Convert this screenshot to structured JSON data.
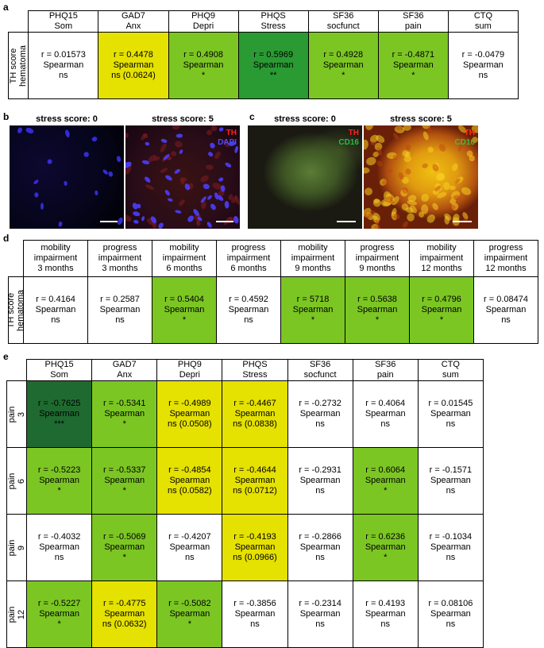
{
  "panels": {
    "a": {
      "label": "a",
      "row_label": "TH score\nhematoma",
      "headers": [
        "PHQ15\nSom",
        "GAD7\nAnx",
        "PHQ9\nDepri",
        "PHQS\nStress",
        "SF36\nsocfunct",
        "SF36\npain",
        "CTQ\nsum"
      ],
      "cells": [
        {
          "text": "r = 0.01573\nSpearman\nns",
          "color": "#ffffff"
        },
        {
          "text": "r = 0.4478\nSpearman\nns (0.0624)",
          "color": "#e5e100"
        },
        {
          "text": "r = 0.4908\nSpearman\n*",
          "color": "#7cc623"
        },
        {
          "text": "r = 0.5969\nSpearman\n**",
          "color": "#2a9a33"
        },
        {
          "text": "r = 0.4928\nSpearman\n*",
          "color": "#7cc623"
        },
        {
          "text": "r = -0.4871\nSpearman\n*",
          "color": "#7cc623"
        },
        {
          "text": "r = -0.0479\nSpearman\nns",
          "color": "#ffffff"
        }
      ]
    },
    "b": {
      "label": "b",
      "title_left": "stress score: 0",
      "title_right": "stress score: 5",
      "stain_line1": "TH",
      "stain_line2": "DAPI",
      "stain_color1": "#ff2020",
      "stain_color2": "#3c3cff"
    },
    "c": {
      "label": "c",
      "title_left": "stress score: 0",
      "title_right": "stress score: 5",
      "stain_line1": "TH",
      "stain_line2": "CD16",
      "stain_color1": "#ff2020",
      "stain_color2": "#20c040"
    },
    "d": {
      "label": "d",
      "row_label": "TH score\nhematoma",
      "headers": [
        "mobility\nimpairment\n3 months",
        "progress\nimpairment\n3 months",
        "mobility\nimpairment\n6 months",
        "progress\nimpairment\n6 months",
        "mobility\nimpairment\n9 months",
        "progress\nimpairment\n9 months",
        "mobility\nimpairment\n12 months",
        "progress\nimpairment\n12 months"
      ],
      "cells": [
        {
          "text": "r = 0.4164\nSpearman\nns",
          "color": "#ffffff"
        },
        {
          "text": "r = 0.2587\nSpearman\nns",
          "color": "#ffffff"
        },
        {
          "text": "r = 0.5404\nSpearman\n*",
          "color": "#7cc623"
        },
        {
          "text": "r = 0.4592\nSpearman\nns",
          "color": "#ffffff"
        },
        {
          "text": "r = 5718\nSpearman\n*",
          "color": "#7cc623"
        },
        {
          "text": "r = 0.5638\nSpearman\n*",
          "color": "#7cc623"
        },
        {
          "text": "r = 0.4796\nSpearman\n*",
          "color": "#7cc623"
        },
        {
          "text": "r = 0.08474\nSpearman\nns",
          "color": "#ffffff"
        }
      ]
    },
    "e": {
      "label": "e",
      "headers": [
        "PHQ15\nSom",
        "GAD7\nAnx",
        "PHQ9\nDepri",
        "PHQS\nStress",
        "SF36\nsocfunct",
        "SF36\npain",
        "CTQ\nsum"
      ],
      "rows": [
        {
          "label": "SF36 pain\n3 months",
          "cells": [
            {
              "text": "r = -0.7625\nSpearman\n***",
              "color": "#1f6a30"
            },
            {
              "text": "r = -0.5341\nSpearman\n*",
              "color": "#7cc623"
            },
            {
              "text": "r = -0.4989\nSpearman\nns (0.0508)",
              "color": "#e5e100"
            },
            {
              "text": "r = -0.4467\nSpearman\nns (0.0838)",
              "color": "#e5e100"
            },
            {
              "text": "r = -0.2732\nSpearman\nns",
              "color": "#ffffff"
            },
            {
              "text": "r = 0.4064\nSpearman\nns",
              "color": "#ffffff"
            },
            {
              "text": "r = 0.01545\nSpearman\nns",
              "color": "#ffffff"
            }
          ]
        },
        {
          "label": "SF36 pain\n6 months",
          "cells": [
            {
              "text": "r = -0.5223\nSpearman\n*",
              "color": "#7cc623"
            },
            {
              "text": "r = -0.5337\nSpearman\n*",
              "color": "#7cc623"
            },
            {
              "text": "r = -0.4854\nSpearman\nns (0.0582)",
              "color": "#e5e100"
            },
            {
              "text": "r = -0.4644\nSpearman\nns (0.0712)",
              "color": "#e5e100"
            },
            {
              "text": "r = -0.2931\nSpearman\nns",
              "color": "#ffffff"
            },
            {
              "text": "r = 0.6064\nSpearman\n*",
              "color": "#7cc623"
            },
            {
              "text": "r = -0.1571\nSpearman\nns",
              "color": "#ffffff"
            }
          ]
        },
        {
          "label": "SF36 pain\n9 months",
          "cells": [
            {
              "text": "r = -0.4032\nSpearman\nns",
              "color": "#ffffff"
            },
            {
              "text": "r = -0.5069\nSpearman\n*",
              "color": "#7cc623"
            },
            {
              "text": "r = -0.4207\nSpearman\nns",
              "color": "#ffffff"
            },
            {
              "text": "r = -0.4193\nSpearman\nns (0.0966)",
              "color": "#e5e100"
            },
            {
              "text": "r = -0.2866\nSpearman\nns",
              "color": "#ffffff"
            },
            {
              "text": "r = 0.6236\nSpearman\n*",
              "color": "#7cc623"
            },
            {
              "text": "r = -0.1034\nSpearman\nns",
              "color": "#ffffff"
            }
          ]
        },
        {
          "label": "SF36 pain\n12 months",
          "cells": [
            {
              "text": "r = -0.5227\nSpearman\n*",
              "color": "#7cc623"
            },
            {
              "text": "r = -0.4775\nSpearman\nns (0.0632)",
              "color": "#e5e100"
            },
            {
              "text": "r = -0.5082\nSpearman\n*",
              "color": "#7cc623"
            },
            {
              "text": "r = -0.3856\nSpearman\nns",
              "color": "#ffffff"
            },
            {
              "text": "r = -0.2314\nSpearman\nns",
              "color": "#ffffff"
            },
            {
              "text": "r = 0.4193\nSpearman\nns",
              "color": "#ffffff"
            },
            {
              "text": "r = 0.08106\nSpearman\nns",
              "color": "#ffffff"
            }
          ]
        }
      ]
    }
  }
}
